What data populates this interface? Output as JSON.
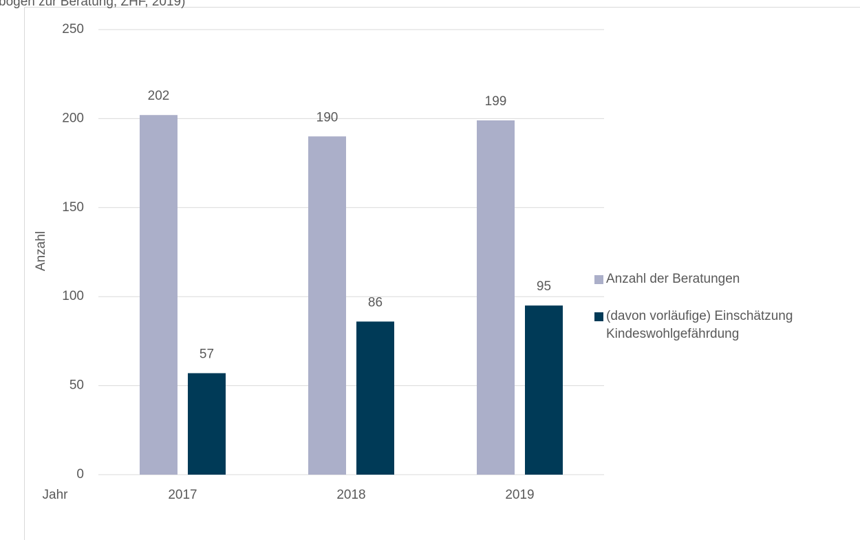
{
  "caption": "bogen zur Beratung, ZHF, 2019)",
  "chart_data": {
    "type": "bar",
    "y_label": "Anzahl",
    "x_label": "Jahr",
    "categories": [
      "2017",
      "2018",
      "2019"
    ],
    "series": [
      {
        "name": "Anzahl der Beratungen",
        "color": "#abafc9",
        "values": [
          202,
          190,
          199
        ]
      },
      {
        "name": "(davon vorläufige) Einschätzung Kindeswohlgefährdung",
        "color": "#003a57",
        "values": [
          57,
          86,
          95
        ]
      }
    ],
    "ylim": [
      0,
      250
    ],
    "yticks": [
      0,
      50,
      100,
      150,
      200,
      250
    ],
    "grid": true,
    "data_labels": true,
    "legend": "right"
  }
}
